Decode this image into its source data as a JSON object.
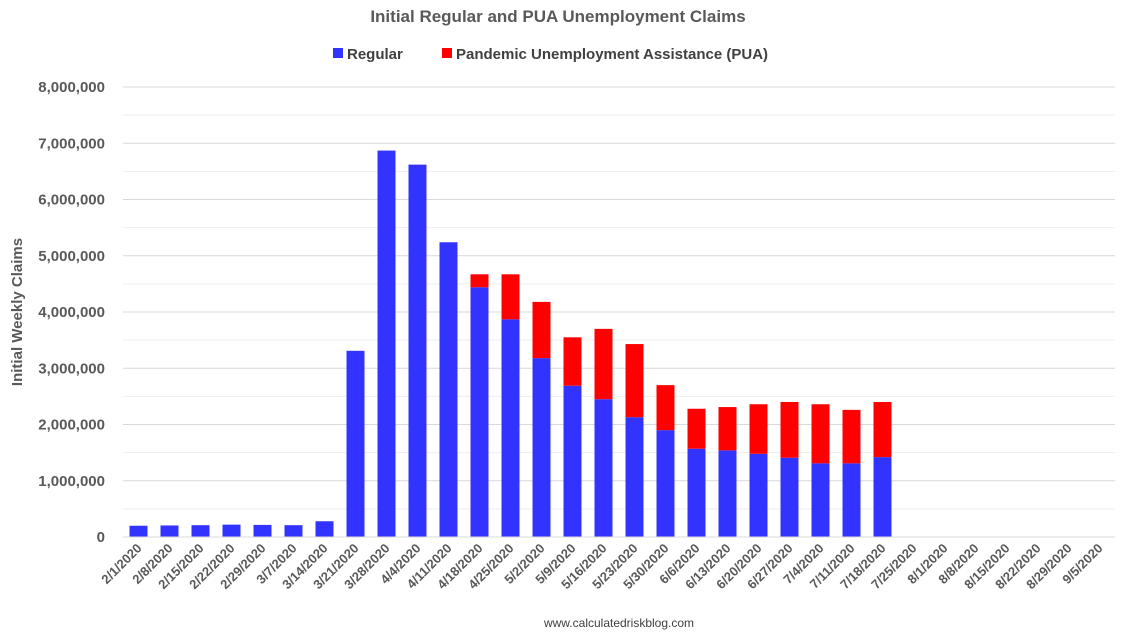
{
  "chart_data": {
    "type": "bar",
    "stacked": true,
    "title": "Initial Regular and PUA Unemployment Claims",
    "ylabel": "Initial Weekly Claims",
    "xlabel": "",
    "ylim": [
      0,
      8000000
    ],
    "y_ticks": [
      0,
      1000000,
      2000000,
      3000000,
      4000000,
      5000000,
      6000000,
      7000000,
      8000000
    ],
    "y_tick_labels": [
      "0",
      "1,000,000",
      "2,000,000",
      "3,000,000",
      "4,000,000",
      "5,000,000",
      "6,000,000",
      "7,000,000",
      "8,000,000"
    ],
    "grid": true,
    "legend_position": "top",
    "categories": [
      "2/1/2020",
      "2/8/2020",
      "2/15/2020",
      "2/22/2020",
      "2/29/2020",
      "3/7/2020",
      "3/14/2020",
      "3/21/2020",
      "3/28/2020",
      "4/4/2020",
      "4/11/2020",
      "4/18/2020",
      "4/25/2020",
      "5/2/2020",
      "5/9/2020",
      "5/16/2020",
      "5/23/2020",
      "5/30/2020",
      "6/6/2020",
      "6/13/2020",
      "6/20/2020",
      "6/27/2020",
      "7/4/2020",
      "7/11/2020",
      "7/18/2020",
      "7/25/2020",
      "8/1/2020",
      "8/8/2020",
      "8/15/2020",
      "8/22/2020",
      "8/29/2020",
      "9/5/2020"
    ],
    "series": [
      {
        "name": "Regular",
        "color": "#3333ff",
        "values": [
          200000,
          205000,
          210000,
          220000,
          215000,
          210000,
          280000,
          3310000,
          6870000,
          6620000,
          5240000,
          4440000,
          3870000,
          3180000,
          2690000,
          2450000,
          2130000,
          1900000,
          1570000,
          1540000,
          1480000,
          1410000,
          1310000,
          1310000,
          1420000,
          null,
          null,
          null,
          null,
          null,
          null,
          null
        ]
      },
      {
        "name": "Pandemic Unemployment Assistance (PUA)",
        "color": "#ff0000",
        "values": [
          0,
          0,
          0,
          0,
          0,
          0,
          0,
          0,
          0,
          0,
          0,
          230000,
          800000,
          1000000,
          860000,
          1250000,
          1300000,
          800000,
          710000,
          770000,
          880000,
          990000,
          1050000,
          950000,
          980000,
          null,
          null,
          null,
          null,
          null,
          null,
          null
        ]
      }
    ]
  },
  "source_text": "www.calculatedriskblog.com"
}
